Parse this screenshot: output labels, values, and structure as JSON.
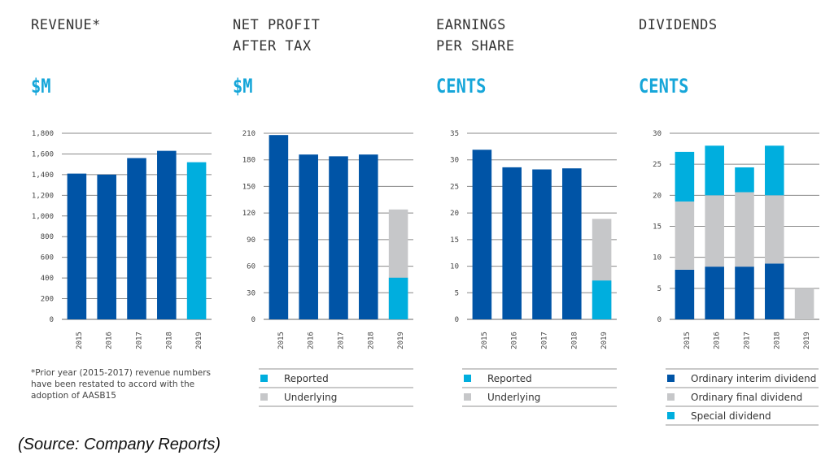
{
  "colors": {
    "dark_blue": "#0054a6",
    "light_blue": "#00aede",
    "grey": "#c6c7c9",
    "unit": "#16a6d9"
  },
  "panels": [
    {
      "title": "REVENUE*",
      "unit": "$M"
    },
    {
      "title": "NET PROFIT\nAFTER TAX",
      "unit": "$M"
    },
    {
      "title": "EARNINGS\nPER SHARE",
      "unit": "CENTS"
    },
    {
      "title": "DIVIDENDS",
      "unit": "CENTS"
    }
  ],
  "revenue_note": "*Prior year (2015-2017) revenue numbers have been restated to accord with the adoption of AASB15",
  "legends": {
    "npat": [
      {
        "label": "Reported",
        "color": "#00aede"
      },
      {
        "label": "Underlying",
        "color": "#c6c7c9"
      }
    ],
    "eps": [
      {
        "label": "Reported",
        "color": "#00aede"
      },
      {
        "label": "Underlying",
        "color": "#c6c7c9"
      }
    ],
    "div": [
      {
        "label": "Ordinary interim dividend",
        "color": "#0054a6"
      },
      {
        "label": "Ordinary final dividend",
        "color": "#c6c7c9"
      },
      {
        "label": "Special dividend",
        "color": "#00aede"
      }
    ]
  },
  "source": "(Source: Company Reports)",
  "chart_data": [
    {
      "type": "bar",
      "title": "REVENUE* $M",
      "categories": [
        "2015",
        "2016",
        "2017",
        "2018",
        "2019"
      ],
      "ylim": [
        0,
        1800
      ],
      "yticks": [
        0,
        200,
        400,
        600,
        800,
        1000,
        1200,
        1400,
        1600,
        1800
      ],
      "series": [
        {
          "name": "Revenue",
          "values": [
            1410,
            1400,
            1560,
            1630,
            1520
          ],
          "colors": [
            "#0054a6",
            "#0054a6",
            "#0054a6",
            "#0054a6",
            "#00aede"
          ]
        }
      ]
    },
    {
      "type": "bar",
      "title": "NET PROFIT AFTER TAX $M",
      "categories": [
        "2015",
        "2016",
        "2017",
        "2018",
        "2019"
      ],
      "ylim": [
        0,
        210
      ],
      "yticks": [
        0,
        30,
        60,
        90,
        120,
        150,
        180,
        210
      ],
      "series": [
        {
          "name": "Net profit",
          "values": [
            208,
            186,
            184,
            186,
            null
          ],
          "color": "#0054a6"
        },
        {
          "name": "Reported",
          "values": [
            null,
            null,
            null,
            null,
            47
          ],
          "color": "#00aede"
        },
        {
          "name": "Underlying",
          "values": [
            null,
            null,
            null,
            null,
            124
          ],
          "color": "#c6c7c9",
          "total": true
        }
      ]
    },
    {
      "type": "bar",
      "title": "EARNINGS PER SHARE CENTS",
      "categories": [
        "2015",
        "2016",
        "2017",
        "2018",
        "2019"
      ],
      "ylim": [
        0,
        35
      ],
      "yticks": [
        0,
        5,
        10,
        15,
        20,
        25,
        30,
        35
      ],
      "series": [
        {
          "name": "EPS",
          "values": [
            31.9,
            28.6,
            28.2,
            28.4,
            null
          ],
          "color": "#0054a6"
        },
        {
          "name": "Reported",
          "values": [
            null,
            null,
            null,
            null,
            7.3
          ],
          "color": "#00aede"
        },
        {
          "name": "Underlying",
          "values": [
            null,
            null,
            null,
            null,
            18.9
          ],
          "color": "#c6c7c9",
          "total": true
        }
      ]
    },
    {
      "type": "bar",
      "stacked": true,
      "title": "DIVIDENDS CENTS",
      "categories": [
        "2015",
        "2016",
        "2017",
        "2018",
        "2019"
      ],
      "ylim": [
        0,
        30
      ],
      "yticks": [
        0,
        5,
        10,
        15,
        20,
        25,
        30
      ],
      "series": [
        {
          "name": "Ordinary interim dividend",
          "values": [
            8,
            8.5,
            8.5,
            9,
            0
          ],
          "color": "#0054a6"
        },
        {
          "name": "Ordinary final dividend",
          "values": [
            11,
            11.5,
            12,
            11,
            5
          ],
          "color": "#c6c7c9"
        },
        {
          "name": "Special dividend",
          "values": [
            8,
            8,
            4,
            8,
            0
          ],
          "color": "#00aede"
        }
      ]
    }
  ]
}
